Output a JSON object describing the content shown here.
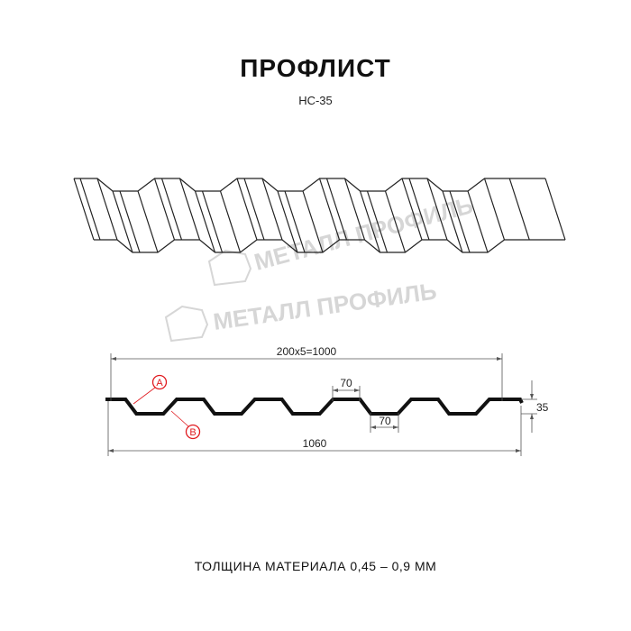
{
  "header": {
    "title": "ПРОФЛИСТ",
    "subtitle": "НС-35"
  },
  "watermark": {
    "text": "МЕТАЛЛ ПРОФИЛЬ",
    "color": "#d6d6d6"
  },
  "section": {
    "dimensions": {
      "pitch_total": "200x5=1000",
      "overall_width": "1060",
      "height": "35",
      "top_flat": "70",
      "bottom_flat": "70"
    },
    "callouts": [
      {
        "label": "A"
      },
      {
        "label": "B"
      }
    ],
    "callout_color": "#e0191e"
  },
  "footer": {
    "thickness": "ТОЛЩИНА МАТЕРИАЛА 0,45 – 0,9 ММ"
  }
}
